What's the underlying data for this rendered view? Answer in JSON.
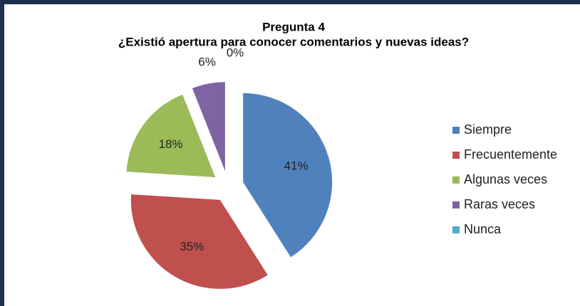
{
  "chart_data": {
    "type": "pie",
    "title": "Pregunta 4",
    "subtitle": "¿Existió apertura para conocer comentarios y nuevas ideas?",
    "categories": [
      "Siempre",
      "Frecuentemente",
      "Algunas veces",
      "Raras veces",
      "Nunca"
    ],
    "values": [
      41,
      35,
      18,
      6,
      0
    ],
    "value_labels": [
      "41%",
      "35%",
      "18%",
      "6%",
      "0%"
    ],
    "colors": [
      "#4f81bd",
      "#c0504d",
      "#9bbb59",
      "#8064a2",
      "#4bacc6"
    ],
    "legend": "right"
  }
}
